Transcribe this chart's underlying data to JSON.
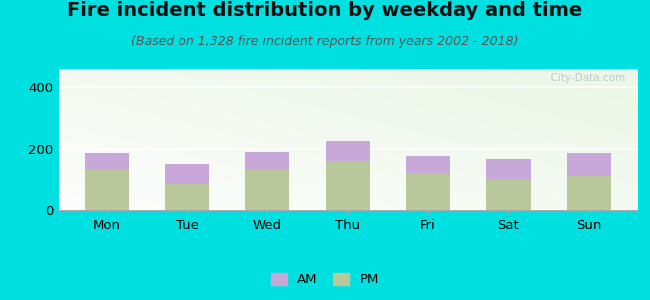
{
  "title": "Fire incident distribution by weekday and time",
  "subtitle": "(Based on 1,328 fire incident reports from years 2002 - 2018)",
  "days": [
    "Mon",
    "Tue",
    "Wed",
    "Thu",
    "Fri",
    "Sat",
    "Sun"
  ],
  "pm_values": [
    130,
    85,
    130,
    160,
    120,
    100,
    110
  ],
  "am_values": [
    55,
    65,
    60,
    65,
    55,
    65,
    75
  ],
  "am_color": "#c8a8d8",
  "pm_color": "#b8c89a",
  "bg_outer": "#00e0e0",
  "bg_plot_tl": "#e8f5e0",
  "bg_plot_tr": "#f5fff5",
  "bg_plot_br": "#fafffe",
  "ylim": [
    0,
    460
  ],
  "yticks": [
    0,
    200,
    400
  ],
  "bar_width": 0.55,
  "title_fontsize": 14,
  "subtitle_fontsize": 9,
  "tick_fontsize": 9.5,
  "legend_fontsize": 9.5,
  "watermark": "  City-Data.com"
}
